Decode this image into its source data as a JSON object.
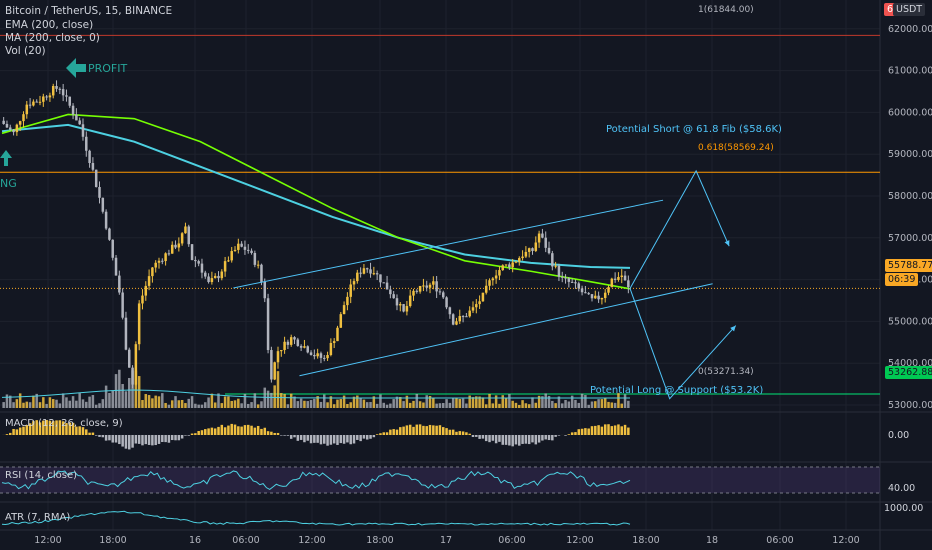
{
  "header": {
    "symbol_line": "Bitcoin / TetherUS, 15, BINANCE",
    "ema_label": "EMA (200, close)",
    "ma_label": "MA (200, close, 0)",
    "vol_label": "Vol (20)",
    "currency": "USDT",
    "currency_num": "6"
  },
  "annotations": {
    "profit": "PROFIT",
    "long_partial": "NG",
    "potential_short": "Potential Short @ 61.8 Fib ($58.6K)",
    "potential_long": "Potential Long @ Support ($53.2K)",
    "fib_618": "0.618(58569.24)",
    "fib_0": "0(53271.34)",
    "fib_1": "1(61844.00)"
  },
  "price_badges": {
    "current_price": "55788.77",
    "countdown": "06:39",
    "support_price": "53262.88"
  },
  "indicators": {
    "macd_label": "MACD (12, 26, close, 9)",
    "macd_value": "0.00",
    "rsi_label": "RSI (14, close)",
    "rsi_value": "40.00",
    "atr_label": "ATR (7, RMA)",
    "atr_value": "1000.00"
  },
  "colors": {
    "background": "#131722",
    "up": "#f0c040",
    "down": "#b2b5be",
    "ema": "#4dd0e1",
    "ma": "#76ff03",
    "fib_618_line": "#ff9800",
    "support_line": "#00e676",
    "channel": "#4fc3f7",
    "current_badge": "#f9a825",
    "support_badge": "#00c853"
  },
  "chart_data": {
    "type": "candlestick",
    "symbol": "Bitcoin / TetherUS",
    "timeframe": "15",
    "exchange": "BINANCE",
    "y_axis": {
      "ticks": [
        53000,
        54000,
        55000,
        56000,
        57000,
        58000,
        59000,
        60000,
        61000,
        62000
      ],
      "tick_labels": [
        "53000.00",
        "54000.00",
        "55000.00",
        "56000.00",
        "57000.00",
        "58000.00",
        "59000.00",
        "60000.00",
        "61000.00",
        "62000.00"
      ],
      "range": [
        52600,
        62250
      ]
    },
    "x_axis": {
      "tick_labels": [
        "12:00",
        "18:00",
        "16",
        "06:00",
        "12:00",
        "18:00",
        "17",
        "06:00",
        "12:00",
        "18:00",
        "18",
        "06:00",
        "12:00"
      ]
    },
    "price_path": [
      [
        0,
        59800
      ],
      [
        4,
        59500
      ],
      [
        8,
        60200
      ],
      [
        12,
        60300
      ],
      [
        16,
        60550
      ],
      [
        18,
        60600
      ],
      [
        20,
        60300
      ],
      [
        24,
        59700
      ],
      [
        28,
        58600
      ],
      [
        32,
        57300
      ],
      [
        36,
        55700
      ],
      [
        38,
        54400
      ],
      [
        40,
        53500
      ],
      [
        42,
        55400
      ],
      [
        46,
        56300
      ],
      [
        50,
        56600
      ],
      [
        54,
        56900
      ],
      [
        56,
        57200
      ],
      [
        58,
        56500
      ],
      [
        60,
        56400
      ],
      [
        63,
        55900
      ],
      [
        66,
        56100
      ],
      [
        69,
        56500
      ],
      [
        72,
        56800
      ],
      [
        75,
        56700
      ],
      [
        78,
        56300
      ],
      [
        80,
        55600
      ],
      [
        81,
        54300
      ],
      [
        82,
        53700
      ],
      [
        84,
        54300
      ],
      [
        88,
        54600
      ],
      [
        92,
        54400
      ],
      [
        95,
        54200
      ],
      [
        98,
        54100
      ],
      [
        101,
        54600
      ],
      [
        104,
        55400
      ],
      [
        107,
        56000
      ],
      [
        110,
        56300
      ],
      [
        113,
        56200
      ],
      [
        116,
        55900
      ],
      [
        119,
        55600
      ],
      [
        122,
        55200
      ],
      [
        125,
        55700
      ],
      [
        128,
        55800
      ],
      [
        131,
        55900
      ],
      [
        134,
        55600
      ],
      [
        137,
        55000
      ],
      [
        140,
        55100
      ],
      [
        143,
        55300
      ],
      [
        146,
        55600
      ],
      [
        149,
        56100
      ],
      [
        152,
        56300
      ],
      [
        155,
        56400
      ],
      [
        158,
        56600
      ],
      [
        161,
        56700
      ],
      [
        163,
        57100
      ],
      [
        165,
        56800
      ],
      [
        167,
        56400
      ],
      [
        170,
        56000
      ],
      [
        173,
        55900
      ],
      [
        176,
        55700
      ],
      [
        179,
        55500
      ],
      [
        182,
        55600
      ],
      [
        185,
        56000
      ],
      [
        188,
        56100
      ],
      [
        190,
        55788
      ]
    ],
    "ema_200": [
      [
        0,
        59550
      ],
      [
        20,
        59700
      ],
      [
        40,
        59300
      ],
      [
        60,
        58700
      ],
      [
        80,
        58100
      ],
      [
        100,
        57500
      ],
      [
        120,
        57000
      ],
      [
        140,
        56600
      ],
      [
        160,
        56400
      ],
      [
        178,
        56300
      ],
      [
        190,
        56280
      ]
    ],
    "ma_200": [
      [
        0,
        59500
      ],
      [
        20,
        59950
      ],
      [
        40,
        59850
      ],
      [
        60,
        59300
      ],
      [
        80,
        58500
      ],
      [
        100,
        57700
      ],
      [
        120,
        57000
      ],
      [
        140,
        56450
      ],
      [
        160,
        56200
      ],
      [
        178,
        55950
      ],
      [
        190,
        55780
      ]
    ],
    "fibonacci": {
      "level_0": 53271.34,
      "level_0618": 58569.24,
      "level_1": 61844.0
    },
    "support_level": 53262.88,
    "current_price": 55788.77,
    "channel": {
      "upper": [
        [
          70,
          55800
        ],
        [
          200,
          57900
        ]
      ],
      "lower": [
        [
          90,
          53700
        ],
        [
          215,
          55900
        ]
      ]
    },
    "projections": {
      "short": [
        [
          190,
          55788
        ],
        [
          210,
          58600
        ],
        [
          220,
          56800
        ]
      ],
      "long": [
        [
          190,
          55788
        ],
        [
          202,
          53150
        ],
        [
          222,
          54900
        ]
      ]
    },
    "macd_value": 0.0,
    "rsi_value": 40.0,
    "atr_value": 1000.0
  }
}
